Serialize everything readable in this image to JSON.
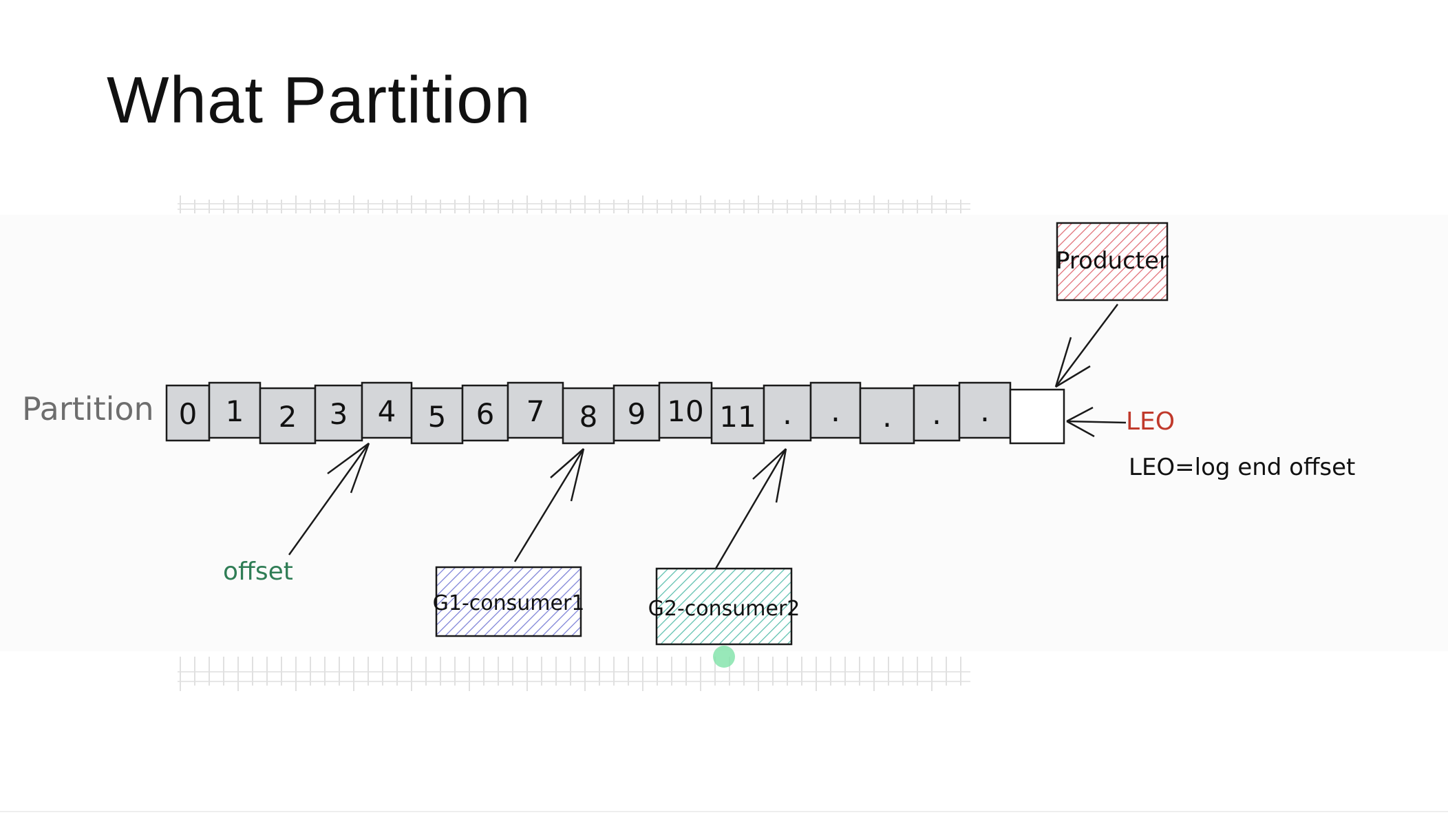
{
  "slide": {
    "title": "What Partition"
  },
  "diagram": {
    "partition_label": "Partition",
    "cells": [
      "0",
      "1",
      "2",
      "3",
      "4",
      "5",
      "6",
      "7",
      "8",
      "9",
      "10",
      "11",
      ".",
      ".",
      ".",
      ".",
      "."
    ],
    "empty_cell": "",
    "offset_label": "offset",
    "producer_label": "Producter",
    "consumer1_label": "G1-consumer1",
    "consumer2_label": "G2-consumer2",
    "leo_label": "LEO",
    "leo_definition": "LEO=log end offset",
    "colors": {
      "cell_fill": "#d4d6d9",
      "producer_hatch": "#e06b73",
      "consumer1_hatch": "#7a7fd6",
      "consumer2_hatch": "#5bbfae",
      "leo": "#c0392b",
      "offset": "#2f7d55",
      "partition_text": "#6e6e6e"
    }
  }
}
